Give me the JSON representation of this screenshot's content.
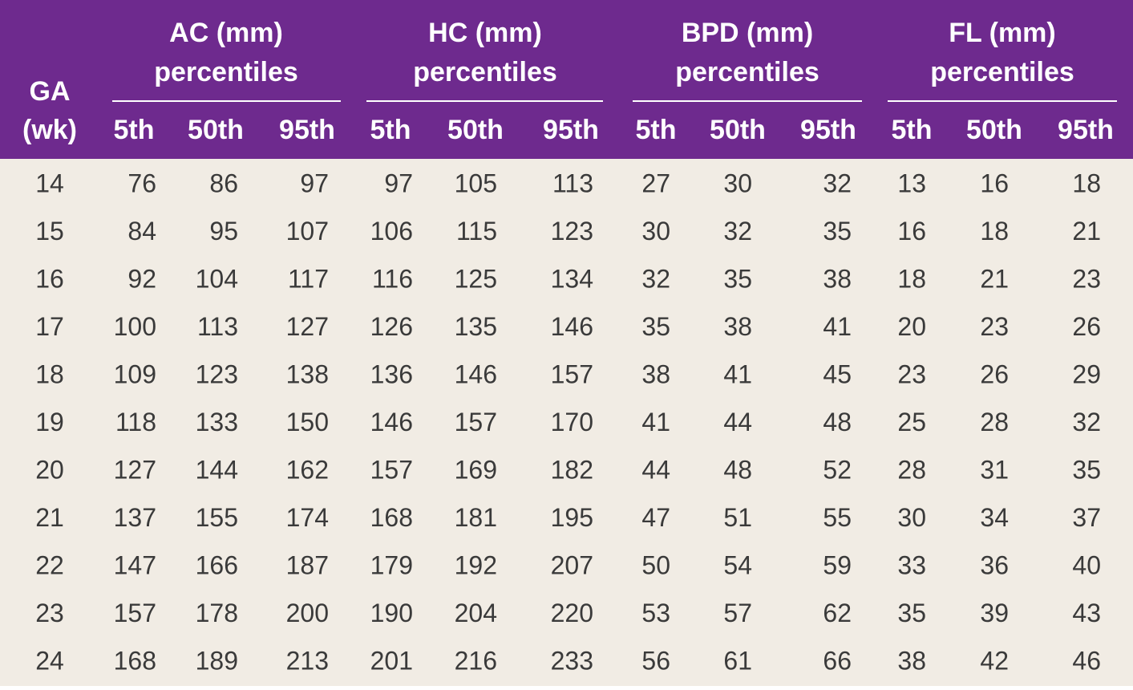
{
  "header": {
    "ga": [
      "GA",
      "(wk)"
    ],
    "groups": [
      {
        "title": "AC (mm)",
        "subtitle": "percentiles",
        "percentiles": [
          "5th",
          "50th",
          "95th"
        ]
      },
      {
        "title": "HC (mm)",
        "subtitle": "percentiles",
        "percentiles": [
          "5th",
          "50th",
          "95th"
        ]
      },
      {
        "title": "BPD (mm)",
        "subtitle": "percentiles",
        "percentiles": [
          "5th",
          "50th",
          "95th"
        ]
      },
      {
        "title": "FL (mm)",
        "subtitle": "percentiles",
        "percentiles": [
          "5th",
          "50th",
          "95th"
        ]
      }
    ]
  },
  "table": {
    "rows": [
      [
        14,
        76,
        86,
        97,
        97,
        105,
        113,
        27,
        30,
        32,
        13,
        16,
        18
      ],
      [
        15,
        84,
        95,
        107,
        106,
        115,
        123,
        30,
        32,
        35,
        16,
        18,
        21
      ],
      [
        16,
        92,
        104,
        117,
        116,
        125,
        134,
        32,
        35,
        38,
        18,
        21,
        23
      ],
      [
        17,
        100,
        113,
        127,
        126,
        135,
        146,
        35,
        38,
        41,
        20,
        23,
        26
      ],
      [
        18,
        109,
        123,
        138,
        136,
        146,
        157,
        38,
        41,
        45,
        23,
        26,
        29
      ],
      [
        19,
        118,
        133,
        150,
        146,
        157,
        170,
        41,
        44,
        48,
        25,
        28,
        32
      ],
      [
        20,
        127,
        144,
        162,
        157,
        169,
        182,
        44,
        48,
        52,
        28,
        31,
        35
      ],
      [
        21,
        137,
        155,
        174,
        168,
        181,
        195,
        47,
        51,
        55,
        30,
        34,
        37
      ],
      [
        22,
        147,
        166,
        187,
        179,
        192,
        207,
        50,
        54,
        59,
        33,
        36,
        40
      ],
      [
        23,
        157,
        178,
        200,
        190,
        204,
        220,
        53,
        57,
        62,
        35,
        39,
        43
      ],
      [
        24,
        168,
        189,
        213,
        201,
        216,
        233,
        56,
        61,
        66,
        38,
        42,
        46
      ]
    ]
  }
}
